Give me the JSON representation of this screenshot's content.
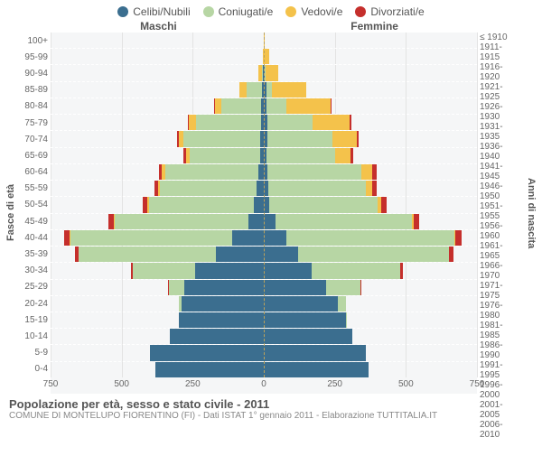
{
  "legend": [
    {
      "label": "Celibi/Nubili",
      "color": "#3b6e8f"
    },
    {
      "label": "Coniugati/e",
      "color": "#b7d6a4"
    },
    {
      "label": "Vedovi/e",
      "color": "#f4c24b"
    },
    {
      "label": "Divorziati/e",
      "color": "#c52f2c"
    }
  ],
  "side_titles": {
    "left": "Maschi",
    "right": "Femmine"
  },
  "y_axis_left_title": "Fasce di età",
  "y_axis_right_title": "Anni di nascita",
  "x_axis": {
    "max": 750,
    "ticks": [
      750,
      500,
      250,
      0,
      250,
      500,
      750
    ]
  },
  "plot_bg": "#f5f6f7",
  "grid_color": "#e3e3e3",
  "dash_color": "#ffffff",
  "center_color": "#bca25a",
  "age_groups": [
    {
      "age": "100+",
      "birth": "≤ 1910",
      "m": {
        "c": 0,
        "co": 0,
        "v": 0,
        "d": 0
      },
      "f": {
        "c": 0,
        "co": 0,
        "v": 3,
        "d": 0
      }
    },
    {
      "age": "95-99",
      "birth": "1911-1915",
      "m": {
        "c": 0,
        "co": 0,
        "v": 3,
        "d": 0
      },
      "f": {
        "c": 0,
        "co": 0,
        "v": 18,
        "d": 0
      }
    },
    {
      "age": "90-94",
      "birth": "1916-1920",
      "m": {
        "c": 2,
        "co": 6,
        "v": 10,
        "d": 0
      },
      "f": {
        "c": 3,
        "co": 3,
        "v": 45,
        "d": 0
      }
    },
    {
      "age": "85-89",
      "birth": "1921-1925",
      "m": {
        "c": 5,
        "co": 55,
        "v": 25,
        "d": 0
      },
      "f": {
        "c": 8,
        "co": 20,
        "v": 120,
        "d": 0
      }
    },
    {
      "age": "80-84",
      "birth": "1926-1930",
      "m": {
        "c": 8,
        "co": 140,
        "v": 25,
        "d": 2
      },
      "f": {
        "c": 10,
        "co": 70,
        "v": 155,
        "d": 3
      }
    },
    {
      "age": "75-79",
      "birth": "1931-1935",
      "m": {
        "c": 10,
        "co": 230,
        "v": 25,
        "d": 3
      },
      "f": {
        "c": 12,
        "co": 160,
        "v": 130,
        "d": 5
      }
    },
    {
      "age": "70-74",
      "birth": "1936-1940",
      "m": {
        "c": 12,
        "co": 270,
        "v": 18,
        "d": 5
      },
      "f": {
        "c": 12,
        "co": 230,
        "v": 85,
        "d": 8
      }
    },
    {
      "age": "65-69",
      "birth": "1941-1945",
      "m": {
        "c": 12,
        "co": 250,
        "v": 12,
        "d": 8
      },
      "f": {
        "c": 10,
        "co": 240,
        "v": 55,
        "d": 10
      }
    },
    {
      "age": "60-64",
      "birth": "1946-1950",
      "m": {
        "c": 18,
        "co": 330,
        "v": 10,
        "d": 12
      },
      "f": {
        "c": 12,
        "co": 330,
        "v": 40,
        "d": 14
      }
    },
    {
      "age": "55-59",
      "birth": "1951-1955",
      "m": {
        "c": 25,
        "co": 340,
        "v": 6,
        "d": 14
      },
      "f": {
        "c": 15,
        "co": 345,
        "v": 22,
        "d": 15
      }
    },
    {
      "age": "50-54",
      "birth": "1956-1960",
      "m": {
        "c": 35,
        "co": 370,
        "v": 4,
        "d": 16
      },
      "f": {
        "c": 20,
        "co": 380,
        "v": 14,
        "d": 18
      }
    },
    {
      "age": "45-49",
      "birth": "1961-1965",
      "m": {
        "c": 55,
        "co": 470,
        "v": 3,
        "d": 18
      },
      "f": {
        "c": 40,
        "co": 480,
        "v": 8,
        "d": 20
      }
    },
    {
      "age": "40-44",
      "birth": "1966-1970",
      "m": {
        "c": 110,
        "co": 570,
        "v": 2,
        "d": 20
      },
      "f": {
        "c": 80,
        "co": 590,
        "v": 4,
        "d": 22
      }
    },
    {
      "age": "35-39",
      "birth": "1971-1975",
      "m": {
        "c": 170,
        "co": 480,
        "v": 1,
        "d": 14
      },
      "f": {
        "c": 120,
        "co": 530,
        "v": 2,
        "d": 16
      }
    },
    {
      "age": "30-34",
      "birth": "1976-1980",
      "m": {
        "c": 240,
        "co": 220,
        "v": 0,
        "d": 6
      },
      "f": {
        "c": 170,
        "co": 310,
        "v": 1,
        "d": 8
      }
    },
    {
      "age": "25-29",
      "birth": "1981-1985",
      "m": {
        "c": 280,
        "co": 55,
        "v": 0,
        "d": 2
      },
      "f": {
        "c": 220,
        "co": 120,
        "v": 0,
        "d": 3
      }
    },
    {
      "age": "20-24",
      "birth": "1986-1990",
      "m": {
        "c": 290,
        "co": 8,
        "v": 0,
        "d": 0
      },
      "f": {
        "c": 260,
        "co": 30,
        "v": 0,
        "d": 0
      }
    },
    {
      "age": "15-19",
      "birth": "1991-1995",
      "m": {
        "c": 300,
        "co": 0,
        "v": 0,
        "d": 0
      },
      "f": {
        "c": 290,
        "co": 2,
        "v": 0,
        "d": 0
      }
    },
    {
      "age": "10-14",
      "birth": "1996-2000",
      "m": {
        "c": 330,
        "co": 0,
        "v": 0,
        "d": 0
      },
      "f": {
        "c": 310,
        "co": 0,
        "v": 0,
        "d": 0
      }
    },
    {
      "age": "5-9",
      "birth": "2001-2005",
      "m": {
        "c": 400,
        "co": 0,
        "v": 0,
        "d": 0
      },
      "f": {
        "c": 360,
        "co": 0,
        "v": 0,
        "d": 0
      }
    },
    {
      "age": "0-4",
      "birth": "2006-2010",
      "m": {
        "c": 380,
        "co": 0,
        "v": 0,
        "d": 0
      },
      "f": {
        "c": 370,
        "co": 0,
        "v": 0,
        "d": 0
      }
    }
  ],
  "footer": {
    "title": "Popolazione per età, sesso e stato civile - 2011",
    "subtitle": "COMUNE DI MONTELUPO FIORENTINO (FI) - Dati ISTAT 1° gennaio 2011 - Elaborazione TUTTITALIA.IT"
  }
}
